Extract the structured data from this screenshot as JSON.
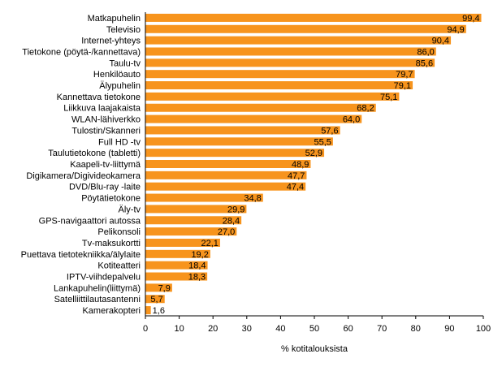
{
  "chart_data": {
    "type": "bar",
    "orientation": "horizontal",
    "categories": [
      "Matkapuhelin",
      "Televisio",
      "Internet-yhteys",
      "Tietokone (pöytä-/kannettava)",
      "Taulu-tv",
      "Henkilöauto",
      "Älypuhelin",
      "Kannettava tietokone",
      "Liikkuva laajakaista",
      "WLAN-lähiverkko",
      "Tulostin/Skanneri",
      "Full HD -tv",
      "Taulutietokone (tabletti)",
      "Kaapeli-tv-liittymä",
      "Digikamera/Digivideokamera",
      "DVD/Blu-ray -laite",
      "Pöytätietokone",
      "Äly-tv",
      "GPS-navigaattori autossa",
      "Pelikonsoli",
      "Tv-maksukortti",
      "Puettava tietotekniikka/älylaite",
      "Kotiteatteri",
      "IPTV-viihdepalvelu",
      "Lankapuhelin(liittymä)",
      "Satelliittilautasantenni",
      "Kamerakopteri"
    ],
    "values": [
      99.4,
      94.9,
      90.4,
      86.0,
      85.6,
      79.7,
      79.1,
      75.1,
      68.2,
      64.0,
      57.6,
      55.5,
      52.9,
      48.9,
      47.7,
      47.4,
      34.8,
      29.9,
      28.4,
      27.0,
      22.1,
      19.2,
      18.4,
      18.3,
      7.9,
      5.7,
      1.6
    ],
    "data_labels": [
      "99,4",
      "94,9",
      "90,4",
      "86,0",
      "85,6",
      "79,7",
      "79,1",
      "75,1",
      "68,2",
      "64,0",
      "57,6",
      "55,5",
      "52,9",
      "48,9",
      "47,7",
      "47,4",
      "34,8",
      "29,9",
      "28,4",
      "27,0",
      "22,1",
      "19,2",
      "18,4",
      "18,3",
      "7,9",
      "5,7",
      "1,6"
    ],
    "xlabel": "% kotitalouksista",
    "ylabel": "",
    "xlim": [
      0,
      100
    ],
    "xticks": [
      0,
      10,
      20,
      30,
      40,
      50,
      60,
      70,
      80,
      90,
      100
    ],
    "grid": false,
    "bar_color": "#f7941d"
  }
}
